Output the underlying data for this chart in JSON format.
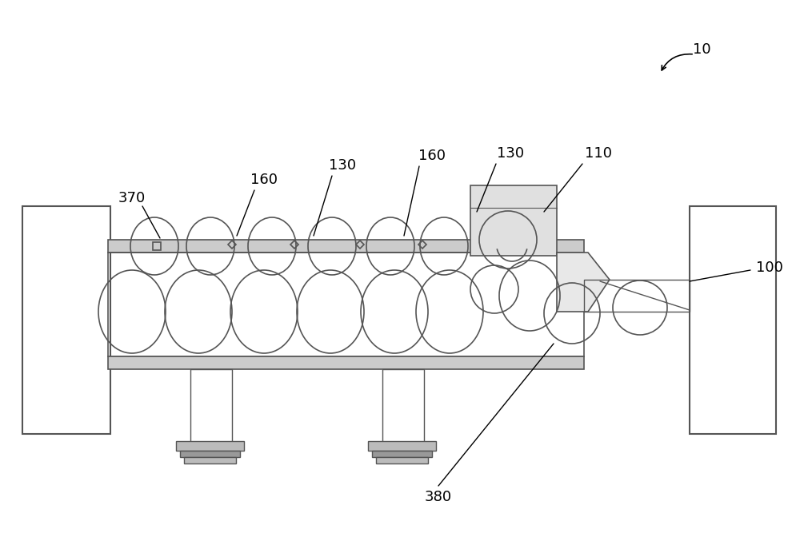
{
  "bg_color": "#ffffff",
  "line_color": "#555555",
  "line_width": 1.2,
  "fig_width": 10.0,
  "fig_height": 6.82
}
